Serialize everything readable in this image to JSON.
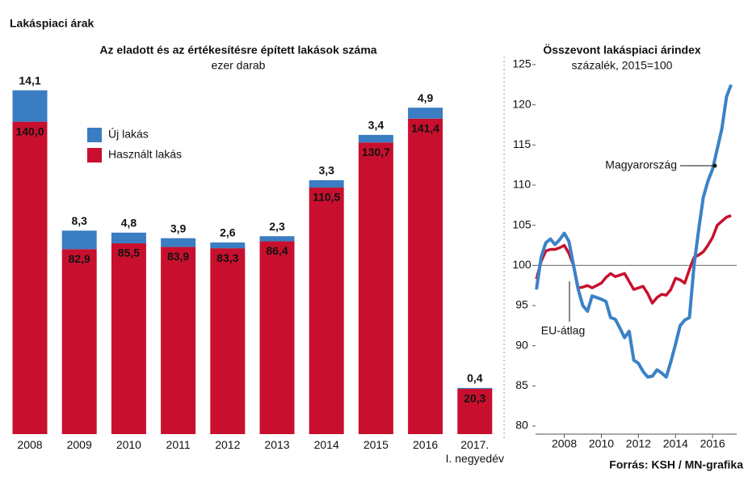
{
  "title": "Lakáspiaci árak",
  "source": "Forrás: KSH / MN-grafika",
  "chart_data": [
    {
      "type": "bar",
      "title": "Az eladott és az értékesítésre épített lakások száma",
      "subtitle": "ezer darab",
      "categories": [
        "2008",
        "2009",
        "2010",
        "2011",
        "2012",
        "2013",
        "2014",
        "2015",
        "2016",
        "2017.\nI. negyedév"
      ],
      "series": [
        {
          "name": "Új lakás",
          "color": "#3a7dc2",
          "values": [
            14.1,
            8.3,
            4.8,
            3.9,
            2.6,
            2.3,
            3.3,
            3.4,
            4.9,
            0.4
          ],
          "value_labels": [
            "14,1",
            "8,3",
            "4,8",
            "3,9",
            "2,6",
            "2,3",
            "3,3",
            "3,4",
            "4,9",
            "0,4"
          ]
        },
        {
          "name": "Használt lakás",
          "color": "#c8102e",
          "values": [
            140.0,
            82.9,
            85.5,
            83.9,
            83.3,
            86.4,
            110.5,
            130.7,
            141.4,
            20.3
          ],
          "value_labels": [
            "140,0",
            "82,9",
            "85,5",
            "83,9",
            "83,3",
            "86,4",
            "110,5",
            "130,7",
            "141,4",
            "20,3"
          ]
        }
      ]
    },
    {
      "type": "line",
      "title": "Összevont lakáspiaci árindex",
      "subtitle": "százalék, 2015=100",
      "x": [
        2006.5,
        2006.75,
        2007.0,
        2007.25,
        2007.5,
        2007.75,
        2008.0,
        2008.25,
        2008.5,
        2008.75,
        2009.0,
        2009.25,
        2009.5,
        2009.75,
        2010.0,
        2010.25,
        2010.5,
        2010.75,
        2011.0,
        2011.25,
        2011.5,
        2011.75,
        2012.0,
        2012.25,
        2012.5,
        2012.75,
        2013.0,
        2013.25,
        2013.5,
        2013.75,
        2014.0,
        2014.25,
        2014.5,
        2014.75,
        2015.0,
        2015.25,
        2015.5,
        2015.75,
        2016.0,
        2016.25,
        2016.5,
        2016.75,
        2017.0
      ],
      "series": [
        {
          "name": "Magyarország",
          "color": "#3b82c6",
          "values": [
            97,
            101,
            102.8,
            103.3,
            102.6,
            103.2,
            104,
            103,
            100,
            97,
            95,
            94.3,
            96.2,
            96,
            95.8,
            95.5,
            93.5,
            93.3,
            92.2,
            91,
            91.8,
            88.2,
            87.8,
            86.8,
            86.1,
            86.2,
            87,
            86.6,
            86.1,
            88,
            90.2,
            92.5,
            93.2,
            93.5,
            100,
            104.5,
            108.5,
            110.5,
            112,
            114.5,
            117,
            121,
            122.5
          ]
        },
        {
          "name": "EU-átlag",
          "color": "#c8102e",
          "values": [
            98.3,
            100.5,
            101.8,
            102,
            102,
            102.2,
            102.5,
            101.5,
            100,
            97.2,
            97.3,
            97.5,
            97.2,
            97.5,
            97.8,
            98.5,
            99,
            98.6,
            98.8,
            99,
            98,
            97,
            97.2,
            97.4,
            96.5,
            95.3,
            96,
            96.4,
            96.3,
            97,
            98.4,
            98.2,
            97.8,
            99.5,
            101,
            101.3,
            101.7,
            102.5,
            103.5,
            105,
            105.5,
            106,
            106.2
          ]
        }
      ],
      "xlim": [
        2006.45,
        2017.3
      ],
      "xticks": [
        2008,
        2010,
        2012,
        2014,
        2016
      ],
      "ylim": [
        80,
        125
      ],
      "yticks": [
        80,
        85,
        90,
        95,
        100,
        105,
        110,
        115,
        120,
        125
      ],
      "reference_line": 100
    }
  ]
}
